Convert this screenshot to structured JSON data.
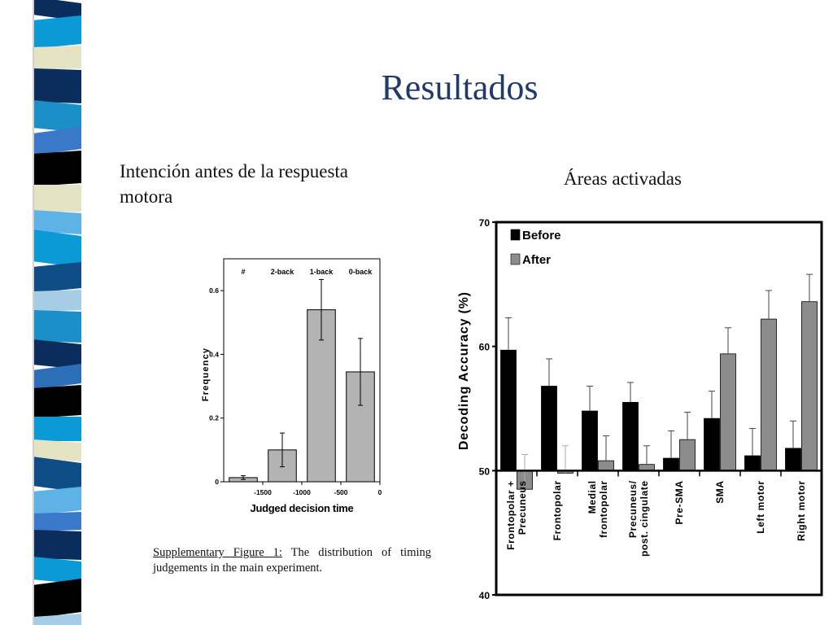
{
  "slide": {
    "title": "Resultados",
    "left_subtitle": "Intención antes de la respuesta motora",
    "right_subtitle": "Áreas activadas",
    "caption_label": "Supplementary Figure 1:",
    "caption_text": " The distribution of timing judgements in the main experiment.",
    "stripe_colors": [
      "#0b2d5e",
      "#0a9bd6",
      "#e4e4c4",
      "#1a8fc8",
      "#3a79c9",
      "#000000",
      "#5fb2e6",
      "#0f4d86",
      "#a7cde6",
      "#2a6fb8"
    ]
  },
  "chart_data": [
    {
      "type": "bar",
      "title": "",
      "xlabel": "Judged decision time",
      "ylabel": "Frequency",
      "x_ticks": [
        "-1500",
        "-1000",
        "-500",
        "0"
      ],
      "y_ticks": [
        "0",
        "0.2",
        "0.4",
        "0.6"
      ],
      "ylim": [
        0,
        0.7
      ],
      "xlim": [
        -2000,
        0
      ],
      "top_labels": [
        "#",
        "2-back",
        "1-back",
        "0-back"
      ],
      "bars": [
        {
          "x": -1750,
          "value": 0.013,
          "err": 0.006
        },
        {
          "x": -1250,
          "value": 0.1,
          "err": 0.053
        },
        {
          "x": -750,
          "value": 0.54,
          "err": 0.095
        },
        {
          "x": -250,
          "value": 0.345,
          "err": 0.105
        }
      ],
      "bar_color": "#b3b3b3"
    },
    {
      "type": "bar",
      "title": "",
      "xlabel": "",
      "ylabel": "Decoding Accuracy (%)",
      "ylim": [
        40,
        70
      ],
      "baseline": 50,
      "y_ticks": [
        "40",
        "50",
        "60",
        "70"
      ],
      "categories": [
        "Frontopolar + Precuneus",
        "Frontopolar",
        "Medial frontopolar",
        "Precuneus/ post. cingulate",
        "Pre-SMA",
        "SMA",
        "Left motor",
        "Right motor"
      ],
      "category_lines": [
        [
          "Frontopolar +",
          "Precuneus"
        ],
        [
          "Frontopolar"
        ],
        [
          "Medial",
          "frontopolar"
        ],
        [
          "Precuneus/",
          "post. cingulate"
        ],
        [
          "Pre-SMA"
        ],
        [
          "SMA"
        ],
        [
          "Left motor"
        ],
        [
          "Right motor"
        ]
      ],
      "series": [
        {
          "name": "Before",
          "color": "#000000",
          "values": [
            59.7,
            56.8,
            54.8,
            55.5,
            51.0,
            54.2,
            51.2,
            51.8
          ],
          "err": [
            2.6,
            2.2,
            2.0,
            1.6,
            2.2,
            2.2,
            2.2,
            2.2
          ]
        },
        {
          "name": "After",
          "color": "#8c8c8c",
          "values": [
            48.5,
            49.8,
            50.8,
            50.5,
            52.5,
            59.4,
            62.2,
            63.6
          ],
          "err": [
            2.8,
            2.2,
            2.0,
            1.5,
            2.2,
            2.1,
            2.3,
            2.2
          ]
        }
      ],
      "legend": [
        "Before",
        "After"
      ],
      "legend_position": "top-left"
    }
  ]
}
